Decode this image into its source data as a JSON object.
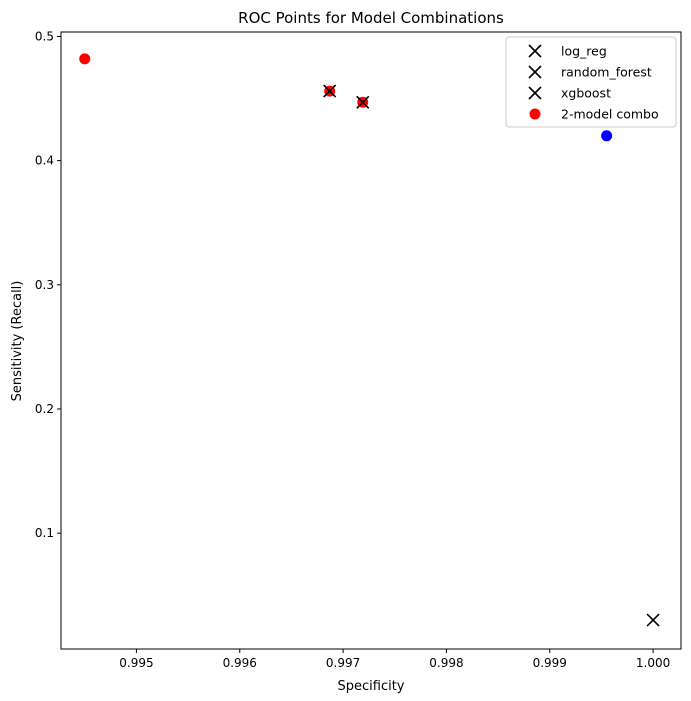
{
  "chart_data": {
    "type": "scatter",
    "title": "ROC Points for Model Combinations",
    "xlabel": "Specificity",
    "ylabel": "Sensitivity (Recall)",
    "xlim": [
      0.99427,
      1.00027
    ],
    "ylim": [
      0.0067,
      0.5036
    ],
    "xticks": [
      0.995,
      0.996,
      0.997,
      0.998,
      0.999,
      1.0
    ],
    "xtick_labels": [
      "0.995",
      "0.996",
      "0.997",
      "0.998",
      "0.999",
      "1.000"
    ],
    "yticks": [
      0.1,
      0.2,
      0.3,
      0.4,
      0.5
    ],
    "ytick_labels": [
      "0.1",
      "0.2",
      "0.3",
      "0.4",
      "0.5"
    ],
    "grid": false,
    "legend_position": "top-right",
    "series": [
      {
        "name": "log_reg",
        "marker": "x",
        "color": "#000000",
        "points": [
          [
            0.99687,
            0.456
          ]
        ]
      },
      {
        "name": "random_forest",
        "marker": "x",
        "color": "#000000",
        "points": [
          [
            0.99719,
            0.447
          ]
        ]
      },
      {
        "name": "xgboost",
        "marker": "x",
        "color": "#000000",
        "points": [
          [
            1.0,
            0.03
          ]
        ]
      },
      {
        "name": "2-model combo",
        "marker": "o",
        "color": "#ff0000",
        "points": [
          [
            0.9945,
            0.482
          ],
          [
            0.99687,
            0.456
          ],
          [
            0.99719,
            0.447
          ]
        ]
      }
    ],
    "extra_points": [
      {
        "marker": "o",
        "color": "#0000ff",
        "points": [
          [
            0.99955,
            0.42
          ]
        ]
      }
    ]
  }
}
